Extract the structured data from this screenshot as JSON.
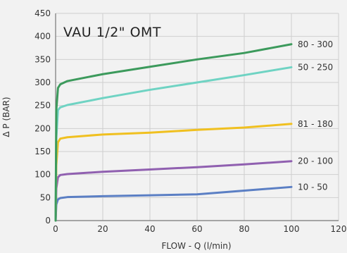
{
  "chart_data": {
    "type": "line",
    "title": "VAU 1/2\" OMT",
    "xlabel": "FLOW - Q (l/min)",
    "ylabel": "Δ  P (BAR)",
    "xlim": [
      0,
      120
    ],
    "ylim": [
      0,
      450
    ],
    "x_ticks": [
      0,
      20,
      40,
      60,
      80,
      100,
      120
    ],
    "y_ticks": [
      0,
      50,
      100,
      150,
      200,
      250,
      300,
      350,
      400,
      450
    ],
    "grid": true,
    "series": [
      {
        "name": "10 - 50",
        "color": "#5b7fc4",
        "points": [
          [
            0,
            0
          ],
          [
            0.3,
            35
          ],
          [
            1,
            46
          ],
          [
            2,
            49
          ],
          [
            5,
            51
          ],
          [
            20,
            53
          ],
          [
            40,
            55
          ],
          [
            60,
            57
          ],
          [
            80,
            65
          ],
          [
            100,
            73
          ]
        ]
      },
      {
        "name": "20 - 100",
        "color": "#9060b0",
        "points": [
          [
            0,
            0
          ],
          [
            0.3,
            70
          ],
          [
            1,
            94
          ],
          [
            2,
            99
          ],
          [
            5,
            101
          ],
          [
            20,
            106
          ],
          [
            40,
            111
          ],
          [
            60,
            116
          ],
          [
            80,
            122
          ],
          [
            100,
            129
          ]
        ]
      },
      {
        "name": "81 - 180",
        "color": "#f0c020",
        "points": [
          [
            0,
            0
          ],
          [
            0.3,
            120
          ],
          [
            1,
            170
          ],
          [
            2,
            178
          ],
          [
            5,
            181
          ],
          [
            20,
            187
          ],
          [
            40,
            191
          ],
          [
            60,
            197
          ],
          [
            80,
            202
          ],
          [
            100,
            210
          ]
        ]
      },
      {
        "name": "50 - 250",
        "color": "#6fd3c3",
        "points": [
          [
            0,
            0
          ],
          [
            0.3,
            180
          ],
          [
            1,
            240
          ],
          [
            2,
            246
          ],
          [
            5,
            251
          ],
          [
            20,
            266
          ],
          [
            40,
            284
          ],
          [
            60,
            300
          ],
          [
            80,
            316
          ],
          [
            100,
            333
          ]
        ]
      },
      {
        "name": "80 - 300",
        "color": "#3c9a5c",
        "points": [
          [
            0,
            0
          ],
          [
            0.3,
            240
          ],
          [
            1,
            288
          ],
          [
            2,
            296
          ],
          [
            5,
            303
          ],
          [
            20,
            318
          ],
          [
            40,
            334
          ],
          [
            60,
            350
          ],
          [
            80,
            364
          ],
          [
            100,
            383
          ]
        ]
      }
    ]
  }
}
